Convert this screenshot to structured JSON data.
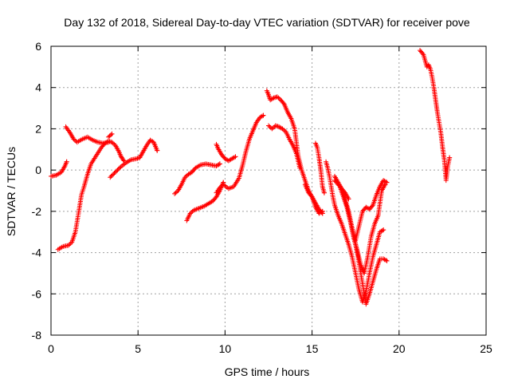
{
  "chart_data": {
    "type": "scatter",
    "title": "Day 132 of 2018, Sidereal Day-to-day VTEC variation (SDTVAR) for receiver pove",
    "xlabel": "GPS time / hours",
    "ylabel": "SDTVAR / TECUs",
    "xlim": [
      0,
      25
    ],
    "ylim": [
      -8,
      6
    ],
    "xticks": [
      0,
      5,
      10,
      15,
      20,
      25
    ],
    "yticks": [
      -8,
      -6,
      -4,
      -2,
      0,
      2,
      4,
      6
    ],
    "grid": true,
    "marker": "+",
    "color": "#ff0000",
    "tracks": [
      {
        "x": [
          0.0,
          0.3,
          0.6,
          0.8,
          0.9
        ],
        "y": [
          -0.3,
          -0.25,
          -0.1,
          0.2,
          0.4
        ]
      },
      {
        "x": [
          0.4,
          0.7,
          1.0,
          1.2,
          1.4,
          1.6,
          1.75,
          1.9,
          2.1,
          2.3,
          2.6,
          2.9,
          3.1,
          3.3,
          3.5,
          3.7,
          3.9,
          4.0,
          4.1,
          4.2
        ],
        "y": [
          -3.85,
          -3.7,
          -3.65,
          -3.5,
          -3.0,
          -2.0,
          -1.2,
          -0.8,
          -0.2,
          0.3,
          0.7,
          1.1,
          1.3,
          1.4,
          1.35,
          1.2,
          0.9,
          0.7,
          0.55,
          0.45
        ]
      },
      {
        "x": [
          0.85,
          1.1,
          1.3,
          1.5,
          1.8,
          2.1,
          2.4,
          2.7,
          3.0,
          3.3
        ],
        "y": [
          2.1,
          1.8,
          1.5,
          1.35,
          1.5,
          1.6,
          1.45,
          1.35,
          1.3,
          1.35
        ]
      },
      {
        "x": [
          3.3,
          3.5
        ],
        "y": [
          1.6,
          1.75
        ]
      },
      {
        "x": [
          3.4,
          3.7,
          4.0,
          4.3,
          4.6,
          4.9,
          5.1,
          5.3,
          5.5,
          5.7,
          5.9,
          6.1
        ],
        "y": [
          -0.35,
          -0.1,
          0.15,
          0.35,
          0.5,
          0.55,
          0.6,
          0.9,
          1.2,
          1.45,
          1.35,
          0.95
        ]
      },
      {
        "x": [
          7.1,
          7.3,
          7.5,
          7.7,
          7.9,
          8.1,
          8.3,
          8.6,
          8.9,
          9.2,
          9.5,
          9.7
        ],
        "y": [
          -1.15,
          -1.0,
          -0.7,
          -0.35,
          -0.2,
          -0.1,
          0.1,
          0.25,
          0.3,
          0.25,
          0.2,
          0.3
        ]
      },
      {
        "x": [
          7.8,
          8.0,
          8.2,
          8.5,
          8.8,
          9.1,
          9.3,
          9.5,
          9.7,
          9.8,
          9.9
        ],
        "y": [
          -2.45,
          -2.1,
          -1.95,
          -1.85,
          -1.75,
          -1.6,
          -1.5,
          -1.3,
          -1.0,
          -0.8,
          -0.6
        ]
      },
      {
        "x": [
          9.5,
          9.6,
          9.8,
          10.0,
          10.2,
          10.4,
          10.6
        ],
        "y": [
          1.25,
          1.05,
          0.75,
          0.55,
          0.45,
          0.55,
          0.65
        ]
      },
      {
        "x": [
          9.5,
          9.7,
          9.9,
          10.2,
          10.5,
          10.8,
          11.0,
          11.2,
          11.4,
          11.6,
          11.8,
          12.0,
          12.2
        ],
        "y": [
          -1.1,
          -0.85,
          -0.7,
          -0.9,
          -0.8,
          -0.4,
          0.2,
          0.9,
          1.5,
          1.9,
          2.3,
          2.55,
          2.65
        ]
      },
      {
        "x": [
          12.4,
          12.5,
          12.6,
          12.8,
          13.0,
          13.2,
          13.4,
          13.6,
          13.8,
          14.0,
          14.2,
          14.4,
          14.6,
          14.8,
          15.0,
          15.2,
          15.4,
          15.6
        ],
        "y": [
          3.85,
          3.65,
          3.4,
          3.5,
          3.55,
          3.4,
          3.2,
          2.8,
          2.5,
          2.0,
          0.7,
          0.0,
          -0.5,
          -1.0,
          -1.3,
          -1.6,
          -1.9,
          -2.1
        ]
      },
      {
        "x": [
          12.5,
          12.7,
          12.9,
          13.1,
          13.3,
          13.5,
          13.7,
          13.9,
          14.1,
          14.3
        ],
        "y": [
          2.15,
          2.0,
          2.15,
          2.1,
          2.0,
          1.85,
          1.5,
          1.2,
          0.8,
          0.1
        ]
      },
      {
        "x": [
          14.6,
          14.8,
          15.0,
          15.2,
          15.4,
          15.6
        ],
        "y": [
          -0.7,
          -1.1,
          -1.3,
          -1.8,
          -2.1,
          -2.0
        ]
      },
      {
        "x": [
          15.2,
          15.3,
          15.4,
          15.5,
          15.6,
          15.7
        ],
        "y": [
          1.3,
          1.1,
          0.6,
          0.0,
          -0.8,
          -1.1
        ]
      },
      {
        "x": [
          15.8,
          15.9,
          16.0,
          16.1,
          16.2,
          16.3,
          16.5,
          16.7,
          16.9,
          17.1,
          17.3,
          17.5,
          17.7,
          17.9,
          18.1,
          18.3,
          18.5,
          18.7,
          18.9,
          19.1
        ],
        "y": [
          0.4,
          0.1,
          -0.3,
          -0.8,
          -1.3,
          -1.7,
          -2.2,
          -2.6,
          -3.1,
          -3.6,
          -4.2,
          -5.0,
          -5.8,
          -6.4,
          -5.9,
          -5.0,
          -4.2,
          -3.6,
          -3.0,
          -2.9
        ]
      },
      {
        "x": [
          16.3,
          16.5,
          16.7,
          16.9,
          17.1,
          17.3,
          17.5,
          17.7,
          17.9,
          18.1,
          18.3,
          18.5,
          18.7,
          18.9,
          19.1,
          19.3
        ],
        "y": [
          -0.3,
          -0.6,
          -0.9,
          -1.4,
          -2.0,
          -2.8,
          -3.6,
          -4.5,
          -5.5,
          -6.5,
          -6.0,
          -5.4,
          -4.8,
          -4.3,
          -4.3,
          -4.4
        ]
      },
      {
        "x": [
          16.6,
          16.8,
          17.0,
          17.2,
          17.4,
          17.6,
          17.8,
          18.0,
          18.2,
          18.4,
          18.6,
          18.8,
          19.0,
          19.2
        ],
        "y": [
          -0.8,
          -1.3,
          -1.8,
          -2.5,
          -3.3,
          -3.9,
          -4.6,
          -5.0,
          -4.2,
          -3.2,
          -2.6,
          -2.2,
          -1.0,
          -0.7
        ]
      },
      {
        "x": [
          17.5,
          17.7,
          17.9,
          18.1,
          18.3,
          18.5,
          18.7,
          18.9,
          19.1,
          19.3
        ],
        "y": [
          -3.4,
          -2.7,
          -2.0,
          -1.8,
          -1.9,
          -1.7,
          -1.2,
          -0.8,
          -0.5,
          -0.6
        ]
      },
      {
        "x": [
          16.3,
          16.5,
          16.7,
          16.9,
          17.1
        ],
        "y": [
          -0.5,
          -0.7,
          -0.9,
          -1.1,
          -1.4
        ]
      },
      {
        "x": [
          21.2,
          21.4,
          21.5,
          21.6,
          21.7,
          21.8,
          21.9,
          22.0,
          22.1,
          22.2,
          22.3,
          22.4,
          22.5,
          22.6,
          22.7,
          22.8,
          22.9
        ],
        "y": [
          5.8,
          5.6,
          5.3,
          5.0,
          5.1,
          4.9,
          4.5,
          4.0,
          3.4,
          2.8,
          2.3,
          1.8,
          1.1,
          0.5,
          -0.5,
          0.2,
          0.6
        ]
      }
    ]
  }
}
